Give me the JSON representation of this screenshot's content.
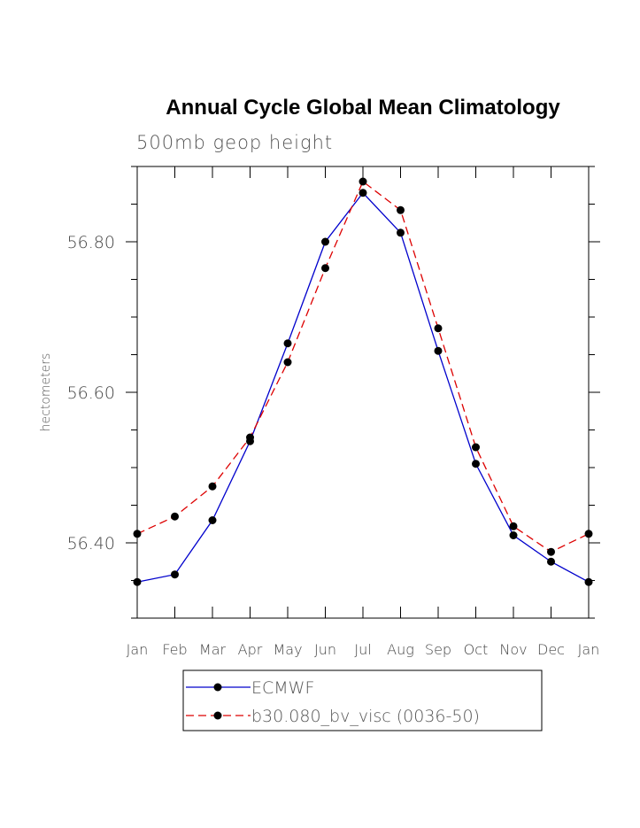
{
  "chart_data": {
    "type": "line",
    "title": "Annual Cycle Global Mean Climatology",
    "subtitle": "500mb geop height",
    "ylabel": "hectometers",
    "xlabel": "",
    "categories": [
      "Jan",
      "Feb",
      "Mar",
      "Apr",
      "May",
      "Jun",
      "Jul",
      "Aug",
      "Sep",
      "Oct",
      "Nov",
      "Dec",
      "Jan"
    ],
    "ylim": [
      56.3,
      56.9
    ],
    "yticks": [
      56.4,
      56.6,
      56.8
    ],
    "ytick_labels": [
      "56.40",
      "56.60",
      "56.80"
    ],
    "series": [
      {
        "name": "ECMWF",
        "color": "#0000cc",
        "dash": "solid",
        "values": [
          56.348,
          56.358,
          56.43,
          56.535,
          56.665,
          56.8,
          56.865,
          56.812,
          56.655,
          56.505,
          56.41,
          56.375,
          56.348
        ]
      },
      {
        "name": "b30.080_bv_visc (0036-50)",
        "color": "#dd0000",
        "dash": "dashed",
        "values": [
          56.412,
          56.435,
          56.475,
          56.54,
          56.64,
          56.765,
          56.88,
          56.842,
          56.685,
          56.527,
          56.422,
          56.388,
          56.412
        ]
      }
    ],
    "legend_position": "bottom",
    "grid": false
  }
}
